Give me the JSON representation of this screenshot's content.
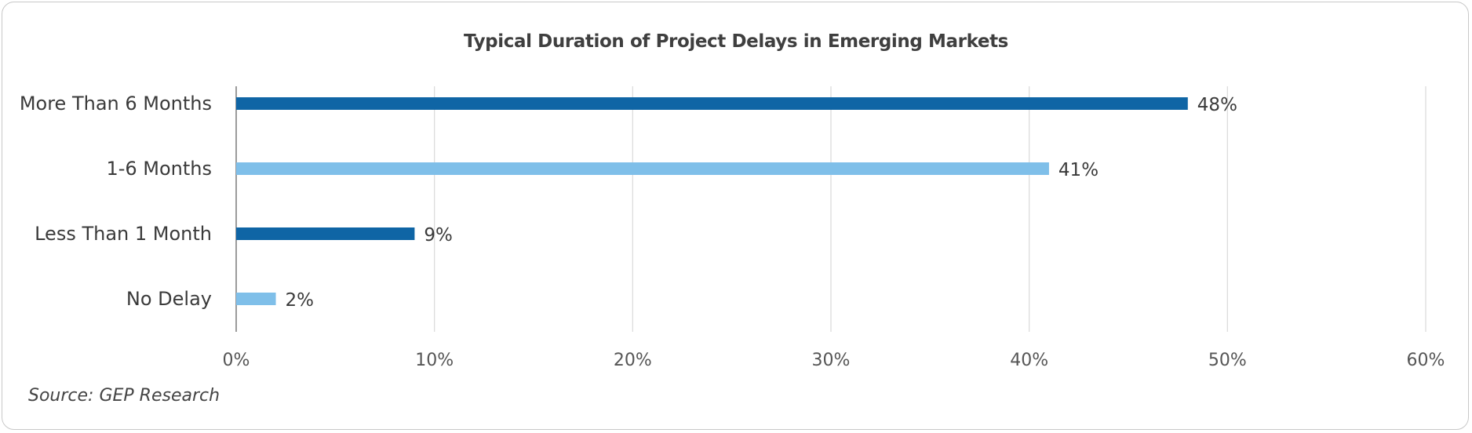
{
  "chart_data": {
    "type": "bar",
    "orientation": "horizontal",
    "title": "Typical Duration of Project Delays in Emerging Markets",
    "categories": [
      "More Than 6 Months",
      "1-6 Months",
      "Less Than 1 Month",
      "No Delay"
    ],
    "values": [
      48,
      41,
      9,
      2
    ],
    "data_labels": [
      "48%",
      "41%",
      "9%",
      "2%"
    ],
    "xlim": [
      0,
      60
    ],
    "x_ticks": [
      0,
      10,
      20,
      30,
      40,
      50,
      60
    ],
    "x_tick_labels": [
      "0%",
      "10%",
      "20%",
      "30%",
      "40%",
      "50%",
      "60%"
    ],
    "grid": true,
    "bar_colors": [
      "#0f65a5",
      "#7fbfe9",
      "#0f65a5",
      "#7fbfe9"
    ],
    "source": "Source: GEP Research"
  }
}
